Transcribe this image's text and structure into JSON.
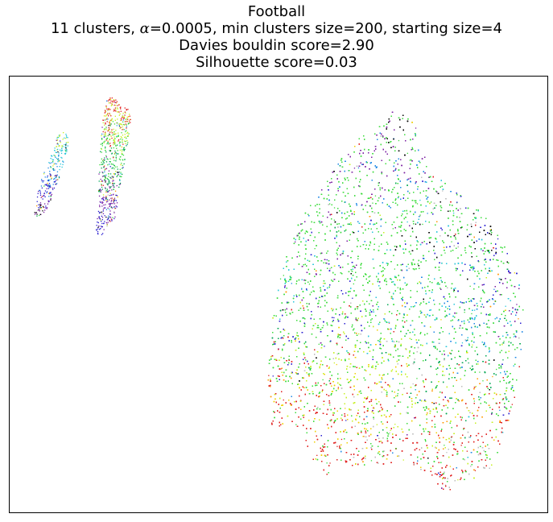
{
  "chart_data": {
    "type": "scatter",
    "title": "Football",
    "subtitle_parts": {
      "before": "11 clusters, ",
      "alpha_symbol": "α",
      "after": "=0.0005, min clusters size=200, starting size=4"
    },
    "davies_line": "Davies bouldin score=2.90",
    "silhouette_line": "Silhouette score=0.03",
    "metrics": {
      "clusters": 11,
      "alpha": 0.0005,
      "min_cluster_size": 200,
      "starting_size": 4,
      "davies_bouldin_score": 2.9,
      "silhouette_score": 0.03
    },
    "xlabel": "",
    "ylabel": "",
    "ticks_visible": false,
    "grid": false,
    "legend": "none",
    "xlim": [
      0,
      100
    ],
    "ylim": [
      0,
      100
    ],
    "cluster_colors": [
      "#000000",
      "#7b1fa2",
      "#2a1fd0",
      "#1e88e5",
      "#26c6da",
      "#00a651",
      "#3ddc3d",
      "#c6f01f",
      "#f0d000",
      "#ff9800",
      "#e0201e",
      "#bdbdbd"
    ],
    "groups": [
      {
        "region": "small-left",
        "n": 260,
        "path": [
          [
            4.6,
            68.3
          ],
          [
            5.5,
            75.0
          ],
          [
            7.2,
            80.5
          ],
          [
            9.0,
            86.5
          ],
          [
            10.5,
            87.5
          ],
          [
            11.0,
            85.0
          ],
          [
            10.0,
            79.0
          ],
          [
            8.0,
            73.0
          ],
          [
            7.0,
            69.5
          ],
          [
            5.2,
            67.5
          ]
        ],
        "stops": [
          [
            0.0,
            0
          ],
          [
            0.15,
            1
          ],
          [
            0.3,
            2
          ],
          [
            0.55,
            3
          ],
          [
            0.75,
            4
          ],
          [
            0.9,
            7
          ],
          [
            1.0,
            4
          ]
        ]
      },
      {
        "region": "tall-left",
        "n": 650,
        "path": [
          [
            16.0,
            64.0
          ],
          [
            16.5,
            70.0
          ],
          [
            16.6,
            78.0
          ],
          [
            17.0,
            86.0
          ],
          [
            17.6,
            93.0
          ],
          [
            18.5,
            95.8
          ],
          [
            21.5,
            93.0
          ],
          [
            22.7,
            91.8
          ],
          [
            22.0,
            85.0
          ],
          [
            21.0,
            78.0
          ],
          [
            20.2,
            72.0
          ],
          [
            19.6,
            67.5
          ],
          [
            17.0,
            63.5
          ]
        ],
        "stops": [
          [
            0.0,
            2
          ],
          [
            0.25,
            1
          ],
          [
            0.45,
            5
          ],
          [
            0.6,
            6
          ],
          [
            0.8,
            7
          ],
          [
            0.9,
            10
          ],
          [
            1.0,
            10
          ]
        ]
      },
      {
        "region": "main",
        "n": 15000,
        "path": [
          [
            48.0,
            17.5
          ],
          [
            48.7,
            22.0
          ],
          [
            48.0,
            30.0
          ],
          [
            48.5,
            38.0
          ],
          [
            49.0,
            46.0
          ],
          [
            50.0,
            54.0
          ],
          [
            52.0,
            62.0
          ],
          [
            54.5,
            68.0
          ],
          [
            57.5,
            73.0
          ],
          [
            60.0,
            78.0
          ],
          [
            62.5,
            83.0
          ],
          [
            65.5,
            86.5
          ],
          [
            68.0,
            87.5
          ],
          [
            70.5,
            91.5
          ],
          [
            72.0,
            92.5
          ],
          [
            73.5,
            91.0
          ],
          [
            75.5,
            89.5
          ],
          [
            77.5,
            82.0
          ],
          [
            80.0,
            77.0
          ],
          [
            83.5,
            73.0
          ],
          [
            86.5,
            71.5
          ],
          [
            88.0,
            69.0
          ],
          [
            90.0,
            65.0
          ],
          [
            92.5,
            60.5
          ],
          [
            94.0,
            56.0
          ],
          [
            95.5,
            50.0
          ],
          [
            95.5,
            42.0
          ],
          [
            95.0,
            35.0
          ],
          [
            94.0,
            26.0
          ],
          [
            92.0,
            18.0
          ],
          [
            89.5,
            9.5
          ],
          [
            87.0,
            8.0
          ],
          [
            84.5,
            7.5
          ],
          [
            83.0,
            6.5
          ],
          [
            81.5,
            4.0
          ],
          [
            80.5,
            5.0
          ],
          [
            79.0,
            7.0
          ],
          [
            76.0,
            10.0
          ],
          [
            72.0,
            11.0
          ],
          [
            68.0,
            11.0
          ],
          [
            64.0,
            10.5
          ],
          [
            61.0,
            10.0
          ],
          [
            59.5,
            8.0
          ],
          [
            57.5,
            9.0
          ],
          [
            56.0,
            13.0
          ],
          [
            54.5,
            17.0
          ],
          [
            52.0,
            21.0
          ],
          [
            50.0,
            19.0
          ]
        ],
        "patches": [
          {
            "x": 72,
            "y": 46,
            "r": 36,
            "c": 6,
            "w": 2.2
          },
          {
            "x": 67,
            "y": 58,
            "r": 16,
            "c": 6,
            "w": 2.5
          },
          {
            "x": 80,
            "y": 52,
            "r": 10,
            "c": 4,
            "w": 1.4
          },
          {
            "x": 63,
            "y": 33,
            "r": 9,
            "c": 7,
            "w": 2.0
          },
          {
            "x": 63,
            "y": 25,
            "r": 8,
            "c": 8,
            "w": 2.0
          },
          {
            "x": 75,
            "y": 27,
            "r": 10,
            "c": 7,
            "w": 1.3
          },
          {
            "x": 80,
            "y": 30,
            "r": 6,
            "c": 5,
            "w": 1.2
          },
          {
            "x": 88,
            "y": 38,
            "r": 7,
            "c": 5,
            "w": 1.6
          },
          {
            "x": 85,
            "y": 44,
            "r": 8,
            "c": 3,
            "w": 1.5
          },
          {
            "x": 68,
            "y": 82,
            "r": 7,
            "c": 1,
            "w": 2.2
          },
          {
            "x": 71,
            "y": 78,
            "r": 8,
            "c": 3,
            "w": 1.4
          },
          {
            "x": 71,
            "y": 89,
            "r": 3,
            "c": 0,
            "w": 2.0
          },
          {
            "x": 86,
            "y": 63,
            "r": 6,
            "c": 0,
            "w": 1.2
          },
          {
            "x": 84,
            "y": 68,
            "r": 5,
            "c": 11,
            "w": 1.0
          },
          {
            "x": 82,
            "y": 62,
            "r": 5,
            "c": 2,
            "w": 1.3
          },
          {
            "x": 91,
            "y": 52,
            "r": 5,
            "c": 2,
            "w": 1.2
          },
          {
            "x": 94,
            "y": 48,
            "r": 4,
            "c": 1,
            "w": 1.5
          },
          {
            "x": 56,
            "y": 45,
            "r": 7,
            "c": 2,
            "w": 1.6
          },
          {
            "x": 51,
            "y": 53,
            "r": 4,
            "c": 4,
            "w": 1.8
          },
          {
            "x": 57,
            "y": 60,
            "r": 6,
            "c": 1,
            "w": 1.2
          },
          {
            "x": 50,
            "y": 41,
            "r": 4,
            "c": 5,
            "w": 1.5
          },
          {
            "x": 59,
            "y": 51,
            "r": 8,
            "c": 6,
            "w": 1.0
          },
          {
            "x": 53,
            "y": 25,
            "r": 7,
            "c": 10,
            "w": 2.2
          },
          {
            "x": 51,
            "y": 30,
            "r": 3,
            "c": 9,
            "w": 1.8
          },
          {
            "x": 53,
            "y": 17,
            "r": 5,
            "c": 10,
            "w": 2.5
          },
          {
            "x": 66,
            "y": 14,
            "r": 12,
            "c": 10,
            "w": 2.4
          },
          {
            "x": 58,
            "y": 12,
            "r": 4,
            "c": 10,
            "w": 2.5
          },
          {
            "x": 80,
            "y": 10,
            "r": 5,
            "c": 10,
            "w": 2.4
          },
          {
            "x": 86,
            "y": 12,
            "r": 4,
            "c": 11,
            "w": 1.6
          },
          {
            "x": 88,
            "y": 18,
            "r": 6,
            "c": 10,
            "w": 1.8
          },
          {
            "x": 87,
            "y": 25,
            "r": 4,
            "c": 9,
            "w": 1.5
          },
          {
            "x": 80,
            "y": 20,
            "r": 5,
            "c": 9,
            "w": 1.5
          },
          {
            "x": 70,
            "y": 20,
            "r": 6,
            "c": 11,
            "w": 0.9
          },
          {
            "x": 62,
            "y": 20,
            "r": 4,
            "c": 11,
            "w": 0.8
          },
          {
            "x": 76,
            "y": 38,
            "r": 6,
            "c": 11,
            "w": 0.7
          }
        ]
      }
    ]
  }
}
